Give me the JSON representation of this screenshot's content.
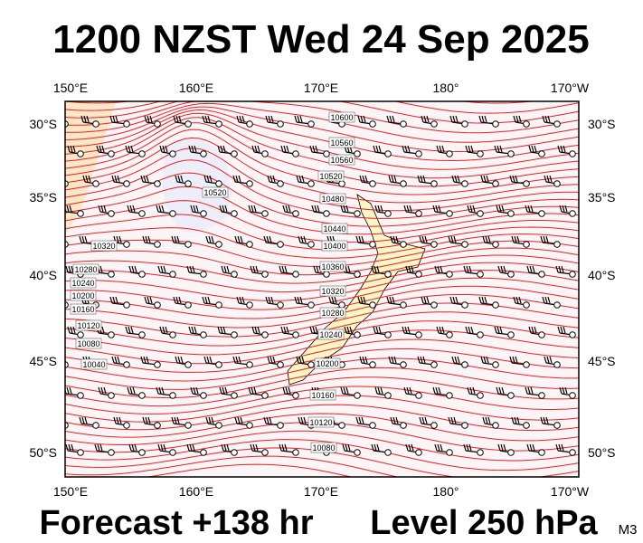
{
  "header": {
    "title": "1200 NZST Wed 24 Sep 2025"
  },
  "map": {
    "lon_labels": [
      "150°E",
      "160°E",
      "170°E",
      "180°",
      "170°W"
    ],
    "lat_labels": [
      "30°S",
      "35°S",
      "40°S",
      "45°S",
      "50°S"
    ],
    "contour_labels": [
      "10600",
      "10560",
      "10520",
      "10480",
      "10440",
      "10400",
      "10360",
      "10320",
      "10280",
      "10240",
      "10200",
      "10160",
      "10120",
      "10080",
      "10320",
      "10280",
      "10240",
      "10200",
      "10160",
      "10120",
      "10080",
      "10040",
      "10520",
      "10560"
    ]
  },
  "footer": {
    "forecast": "Forecast +138 hr",
    "level": "Level 250 hPa",
    "model": "M3"
  }
}
